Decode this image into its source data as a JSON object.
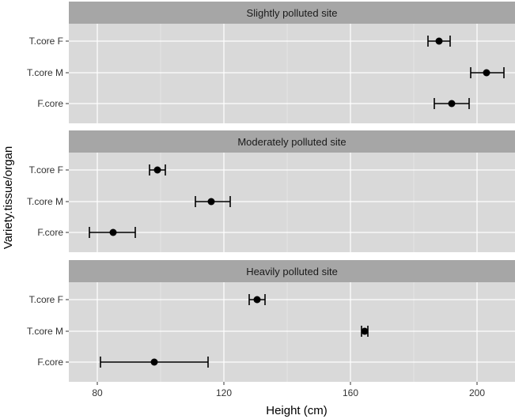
{
  "chart_data": {
    "type": "scatter",
    "xlabel": "Height (cm)",
    "ylabel": "Variety.tissue/organ",
    "xlim": [
      71,
      212
    ],
    "xticks": [
      80,
      120,
      160,
      200
    ],
    "categories": [
      "T.core F",
      "T.core M",
      "F.core"
    ],
    "grid": true,
    "panels": [
      {
        "title": "Slightly polluted site",
        "points": [
          {
            "category": "T.core F",
            "value": 188,
            "lower": 184.5,
            "upper": 191.5
          },
          {
            "category": "T.core M",
            "value": 203,
            "lower": 198,
            "upper": 208.5
          },
          {
            "category": "F.core",
            "value": 192,
            "lower": 186.5,
            "upper": 197.5
          }
        ]
      },
      {
        "title": "Moderately polluted site",
        "points": [
          {
            "category": "T.core F",
            "value": 99,
            "lower": 96.5,
            "upper": 101.5
          },
          {
            "category": "T.core M",
            "value": 116,
            "lower": 111,
            "upper": 122
          },
          {
            "category": "F.core",
            "value": 85,
            "lower": 77.5,
            "upper": 92
          }
        ]
      },
      {
        "title": "Heavily polluted site",
        "points": [
          {
            "category": "T.core F",
            "value": 130.5,
            "lower": 128,
            "upper": 133
          },
          {
            "category": "T.core M",
            "value": 164.5,
            "lower": 163.5,
            "upper": 165.5
          },
          {
            "category": "F.core",
            "value": 98,
            "lower": 81,
            "upper": 115
          }
        ]
      }
    ]
  },
  "colors": {
    "panel_bg": "#d9d9d9",
    "strip_bg": "#a6a6a6",
    "grid_major": "#ffffff",
    "grid_minor": "#ececec",
    "point": "#000000"
  }
}
